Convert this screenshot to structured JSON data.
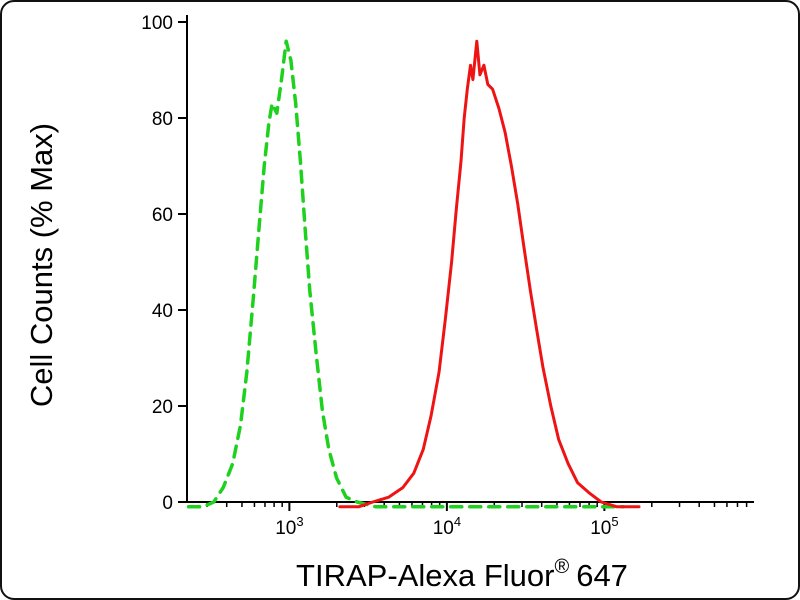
{
  "figure": {
    "background": "#ffffff",
    "frame_color": "#111111"
  },
  "chart_data": {
    "type": "line",
    "subtype": "flow-cytometry-histogram",
    "title": "",
    "ylabel": "Cell Counts (% Max)",
    "xlabel": {
      "main": "TIRAP-Alexa Fluor",
      "sup": "®",
      "suffix": "647"
    },
    "x_scale": "log10",
    "x_log_range": [
      2.35,
      5.95
    ],
    "ylim": [
      0,
      100
    ],
    "y_ticks": [
      0,
      20,
      40,
      60,
      80,
      100
    ],
    "x_major_ticks": [
      {
        "log": 3,
        "base": "10",
        "exp": "3"
      },
      {
        "log": 4,
        "base": "10",
        "exp": "4"
      },
      {
        "log": 5,
        "base": "10",
        "exp": "5"
      }
    ],
    "grid": false,
    "legend": false,
    "series": [
      {
        "name": "green-dashed",
        "style": "dashed",
        "color": "#1ed11e",
        "width": 3.5,
        "dash": "11 8",
        "data_name": "control-curve-green-dashed",
        "peak": {
          "x_log": 2.98,
          "y": 96
        },
        "points": [
          [
            2.36,
            -1
          ],
          [
            2.45,
            -1
          ],
          [
            2.52,
            0
          ],
          [
            2.58,
            3
          ],
          [
            2.64,
            8
          ],
          [
            2.69,
            16
          ],
          [
            2.73,
            27
          ],
          [
            2.77,
            42
          ],
          [
            2.81,
            58
          ],
          [
            2.84,
            70
          ],
          [
            2.87,
            79
          ],
          [
            2.89,
            83
          ],
          [
            2.92,
            81
          ],
          [
            2.95,
            88
          ],
          [
            2.98,
            96
          ],
          [
            3.01,
            92
          ],
          [
            3.04,
            83
          ],
          [
            3.07,
            71
          ],
          [
            3.1,
            57
          ],
          [
            3.13,
            44
          ],
          [
            3.17,
            31
          ],
          [
            3.21,
            19
          ],
          [
            3.25,
            11
          ],
          [
            3.3,
            5
          ],
          [
            3.36,
            1
          ],
          [
            3.43,
            0
          ],
          [
            3.55,
            -1
          ],
          [
            3.8,
            -1
          ],
          [
            4.1,
            -1
          ],
          [
            4.4,
            -1
          ],
          [
            4.7,
            -1
          ],
          [
            5.0,
            -1
          ],
          [
            5.12,
            -1
          ]
        ]
      },
      {
        "name": "red-solid",
        "style": "solid",
        "color": "#ee1414",
        "width": 3,
        "dash": "",
        "data_name": "tirap-curve-red-solid",
        "peak": {
          "x_log": 4.19,
          "y": 96
        },
        "points": [
          [
            3.32,
            -1
          ],
          [
            3.44,
            -1
          ],
          [
            3.53,
            0
          ],
          [
            3.63,
            1
          ],
          [
            3.72,
            3
          ],
          [
            3.79,
            6
          ],
          [
            3.85,
            11
          ],
          [
            3.9,
            18
          ],
          [
            3.95,
            27
          ],
          [
            3.99,
            38
          ],
          [
            4.03,
            50
          ],
          [
            4.06,
            61
          ],
          [
            4.09,
            71
          ],
          [
            4.11,
            80
          ],
          [
            4.13,
            86
          ],
          [
            4.15,
            91
          ],
          [
            4.165,
            88
          ],
          [
            4.19,
            96
          ],
          [
            4.21,
            89
          ],
          [
            4.235,
            91
          ],
          [
            4.26,
            87
          ],
          [
            4.29,
            86
          ],
          [
            4.33,
            82
          ],
          [
            4.37,
            77
          ],
          [
            4.41,
            70
          ],
          [
            4.45,
            62
          ],
          [
            4.49,
            53
          ],
          [
            4.53,
            44
          ],
          [
            4.57,
            36
          ],
          [
            4.61,
            28
          ],
          [
            4.66,
            20
          ],
          [
            4.71,
            13
          ],
          [
            4.77,
            8
          ],
          [
            4.83,
            4
          ],
          [
            4.9,
            2
          ],
          [
            4.98,
            0
          ],
          [
            5.08,
            -1
          ],
          [
            5.22,
            -1
          ]
        ]
      }
    ]
  }
}
